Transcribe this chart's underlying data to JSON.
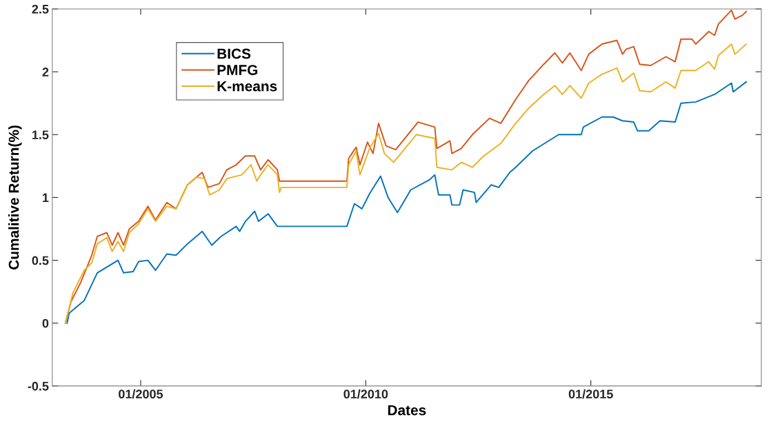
{
  "chart_data": {
    "type": "line",
    "xlabel": "Dates",
    "ylabel": "Cumalitive Return(%)",
    "xlim": [
      "2003-01-15",
      "2018-10-15"
    ],
    "xticks": [
      {
        "value": "2005-01-01",
        "label": "01/2005"
      },
      {
        "value": "2010-01-01",
        "label": "01/2010"
      },
      {
        "value": "2015-01-01",
        "label": "01/2015"
      }
    ],
    "ylim": [
      -0.5,
      2.5
    ],
    "yticks": [
      -0.5,
      0,
      0.5,
      1,
      1.5,
      2,
      2.5
    ],
    "grid": false,
    "legend": "top left",
    "line_style": "solid",
    "marker": "none",
    "series": [
      {
        "name": "BICS",
        "color": "#0072bd",
        "x": [
          "2003-05-15",
          "2003-06-01",
          "2003-10-01",
          "2004-01-15",
          "2004-07-01",
          "2004-08-15",
          "2004-11-01",
          "2004-12-15",
          "2005-03-01",
          "2005-05-01",
          "2005-08-01",
          "2005-10-15",
          "2006-01-15",
          "2006-05-15",
          "2006-08-01",
          "2006-10-15",
          "2007-02-15",
          "2007-03-15",
          "2007-05-01",
          "2007-07-15",
          "2007-08-15",
          "2007-11-01",
          "2008-01-15",
          "2009-08-01",
          "2009-10-01",
          "2009-12-01",
          "2010-02-01",
          "2010-05-01",
          "2010-07-01",
          "2010-09-15",
          "2011-01-01",
          "2011-06-01",
          "2011-07-15",
          "2011-08-15",
          "2011-11-15",
          "2011-12-01",
          "2012-02-01",
          "2012-03-01",
          "2012-06-01",
          "2012-06-15",
          "2012-10-15",
          "2012-12-15",
          "2013-03-15",
          "2013-05-01",
          "2013-09-15",
          "2014-04-15",
          "2014-10-15",
          "2014-11-01",
          "2015-04-01",
          "2015-07-01",
          "2015-09-15",
          "2015-12-15",
          "2016-01-15",
          "2016-04-15",
          "2016-07-15",
          "2016-11-15",
          "2017-01-01",
          "2017-05-01",
          "2017-10-01",
          "2018-02-15",
          "2018-03-01",
          "2018-06-15"
        ],
        "values": [
          0,
          0.08,
          0.18,
          0.4,
          0.5,
          0.4,
          0.41,
          0.49,
          0.5,
          0.42,
          0.55,
          0.54,
          0.63,
          0.73,
          0.62,
          0.69,
          0.77,
          0.73,
          0.81,
          0.89,
          0.81,
          0.87,
          0.77,
          0.77,
          0.95,
          0.91,
          1.03,
          1.17,
          1.0,
          0.88,
          1.06,
          1.14,
          1.18,
          1.02,
          1.02,
          0.94,
          0.94,
          1.06,
          1.04,
          0.96,
          1.1,
          1.08,
          1.2,
          1.24,
          1.37,
          1.5,
          1.5,
          1.56,
          1.64,
          1.64,
          1.61,
          1.6,
          1.53,
          1.53,
          1.61,
          1.6,
          1.75,
          1.76,
          1.82,
          1.91,
          1.84,
          1.92
        ]
      },
      {
        "name": "PMFG",
        "color": "#d95319",
        "x": [
          "2003-05-01",
          "2003-06-15",
          "2003-09-01",
          "2003-12-01",
          "2004-01-15",
          "2004-04-01",
          "2004-05-15",
          "2004-07-01",
          "2004-08-15",
          "2004-10-01",
          "2004-12-15",
          "2005-03-01",
          "2005-05-01",
          "2005-08-01",
          "2005-10-15",
          "2006-01-15",
          "2006-05-15",
          "2006-07-01",
          "2006-10-01",
          "2006-12-01",
          "2007-02-15",
          "2007-05-01",
          "2007-07-15",
          "2007-09-01",
          "2007-11-01",
          "2008-01-15",
          "2008-02-01",
          "2009-08-01",
          "2009-08-15",
          "2009-10-15",
          "2009-11-15",
          "2010-01-15",
          "2010-03-01",
          "2010-04-15",
          "2010-06-15",
          "2010-09-01",
          "2011-03-01",
          "2011-07-15",
          "2011-08-01",
          "2011-11-15",
          "2011-12-01",
          "2012-02-15",
          "2012-05-15",
          "2012-10-01",
          "2013-01-01",
          "2013-05-01",
          "2013-08-15",
          "2013-12-15",
          "2014-03-15",
          "2014-05-15",
          "2014-07-15",
          "2014-10-15",
          "2014-12-15",
          "2015-04-01",
          "2015-08-01",
          "2015-09-15",
          "2015-10-15",
          "2015-12-15",
          "2016-02-01",
          "2016-05-01",
          "2016-09-01",
          "2016-11-15",
          "2017-01-01",
          "2017-04-01",
          "2017-05-01",
          "2017-08-15",
          "2017-10-01",
          "2017-11-01",
          "2018-02-15",
          "2018-03-15",
          "2018-05-15",
          "2018-06-15"
        ],
        "values": [
          0,
          0.17,
          0.32,
          0.54,
          0.69,
          0.72,
          0.62,
          0.72,
          0.62,
          0.75,
          0.81,
          0.93,
          0.82,
          0.96,
          0.91,
          1.1,
          1.2,
          1.08,
          1.11,
          1.22,
          1.26,
          1.33,
          1.33,
          1.22,
          1.3,
          1.22,
          1.13,
          1.13,
          1.31,
          1.4,
          1.26,
          1.44,
          1.35,
          1.59,
          1.41,
          1.38,
          1.6,
          1.56,
          1.39,
          1.45,
          1.35,
          1.39,
          1.5,
          1.63,
          1.59,
          1.78,
          1.93,
          2.06,
          2.15,
          2.07,
          2.15,
          2.01,
          2.14,
          2.22,
          2.25,
          2.14,
          2.18,
          2.2,
          2.06,
          2.05,
          2.12,
          2.08,
          2.26,
          2.26,
          2.22,
          2.32,
          2.29,
          2.38,
          2.49,
          2.42,
          2.45,
          2.48
        ]
      },
      {
        "name": "K-means",
        "color": "#edb120",
        "x": [
          "2003-05-01",
          "2003-07-01",
          "2003-10-01",
          "2003-12-01",
          "2004-01-15",
          "2004-04-01",
          "2004-05-15",
          "2004-07-01",
          "2004-08-15",
          "2004-10-01",
          "2004-12-15",
          "2005-03-01",
          "2005-05-01",
          "2005-08-01",
          "2005-10-15",
          "2006-01-15",
          "2006-04-01",
          "2006-06-01",
          "2006-07-15",
          "2006-10-01",
          "2006-12-01",
          "2007-04-01",
          "2007-06-15",
          "2007-08-01",
          "2007-09-01",
          "2007-11-01",
          "2008-01-15",
          "2008-02-01",
          "2008-02-15",
          "2009-08-01",
          "2009-08-15",
          "2009-10-15",
          "2009-11-15",
          "2010-02-01",
          "2010-04-15",
          "2010-06-01",
          "2010-08-15",
          "2011-02-15",
          "2011-07-15",
          "2011-08-01",
          "2011-12-01",
          "2012-02-15",
          "2012-05-15",
          "2012-08-15",
          "2013-01-01",
          "2013-05-01",
          "2013-08-15",
          "2013-12-15",
          "2014-03-15",
          "2014-05-15",
          "2014-07-15",
          "2014-10-15",
          "2014-12-15",
          "2015-04-01",
          "2015-08-01",
          "2015-09-15",
          "2015-12-15",
          "2016-02-01",
          "2016-05-01",
          "2016-09-01",
          "2016-11-15",
          "2017-01-01",
          "2017-05-01",
          "2017-08-15",
          "2017-10-01",
          "2017-11-01",
          "2018-02-15",
          "2018-03-15",
          "2018-06-15"
        ],
        "values": [
          0,
          0.24,
          0.42,
          0.48,
          0.63,
          0.68,
          0.57,
          0.65,
          0.57,
          0.72,
          0.79,
          0.91,
          0.81,
          0.93,
          0.91,
          1.1,
          1.16,
          1.15,
          1.02,
          1.06,
          1.15,
          1.18,
          1.26,
          1.13,
          1.18,
          1.26,
          1.18,
          1.04,
          1.08,
          1.08,
          1.26,
          1.37,
          1.18,
          1.39,
          1.51,
          1.35,
          1.28,
          1.5,
          1.47,
          1.24,
          1.22,
          1.28,
          1.24,
          1.33,
          1.43,
          1.59,
          1.71,
          1.82,
          1.89,
          1.82,
          1.89,
          1.79,
          1.91,
          1.98,
          2.03,
          1.92,
          1.99,
          1.85,
          1.84,
          1.92,
          1.87,
          2.01,
          2.01,
          2.08,
          2.02,
          2.13,
          2.22,
          2.14,
          2.22
        ]
      }
    ]
  }
}
